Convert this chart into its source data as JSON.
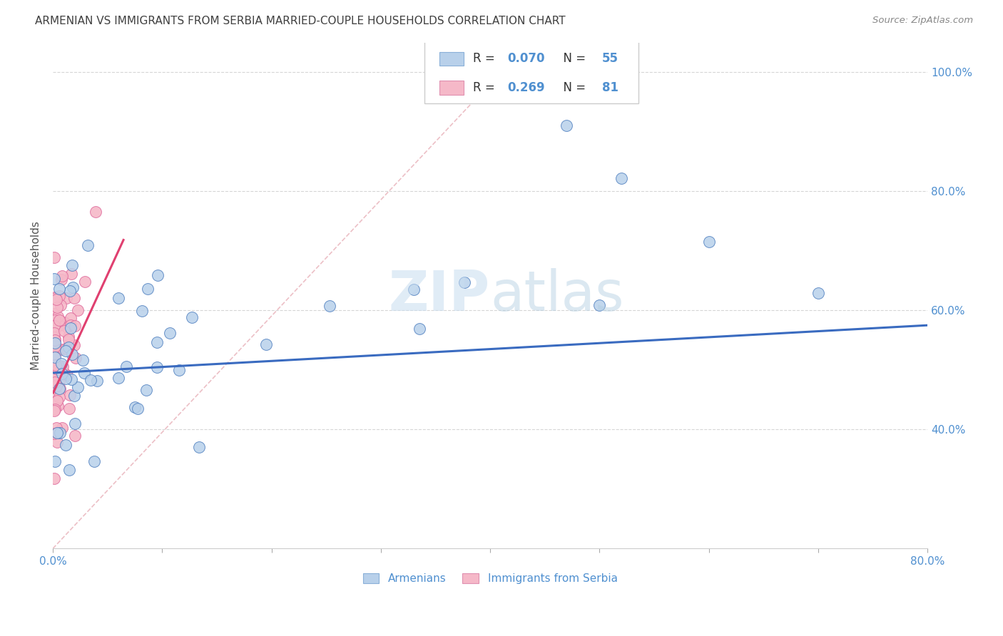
{
  "title": "ARMENIAN VS IMMIGRANTS FROM SERBIA MARRIED-COUPLE HOUSEHOLDS CORRELATION CHART",
  "source": "Source: ZipAtlas.com",
  "ylabel": "Married-couple Households",
  "xlim": [
    0.0,
    0.8
  ],
  "ylim": [
    0.2,
    1.05
  ],
  "plot_ylim": [
    0.2,
    1.05
  ],
  "xtick_positions": [
    0.0,
    0.1,
    0.2,
    0.3,
    0.4,
    0.5,
    0.6,
    0.7,
    0.8
  ],
  "ytick_positions": [
    0.4,
    0.6,
    0.8,
    1.0
  ],
  "ytick_labels": [
    "40.0%",
    "60.0%",
    "80.0%",
    "100.0%"
  ],
  "series1_fill": "#b8d0ea",
  "series2_fill": "#f5b8c8",
  "trend1_color": "#3a6bc0",
  "trend2_color": "#e04070",
  "ref_line_color": "#e0a0b0",
  "grid_color": "#cccccc",
  "title_color": "#404040",
  "axis_tick_color": "#5090d0",
  "watermark": "ZIPatlas",
  "legend_R1": "0.070",
  "legend_N1": "55",
  "legend_R2": "0.269",
  "legend_N2": "81",
  "legend_label1": "Armenians",
  "legend_label2": "Immigrants from Serbia",
  "trend1_x0": 0.0,
  "trend1_y0": 0.495,
  "trend1_x1": 0.8,
  "trend1_y1": 0.575,
  "trend2_x0": 0.0,
  "trend2_y0": 0.46,
  "trend2_x1": 0.065,
  "trend2_y1": 0.72
}
